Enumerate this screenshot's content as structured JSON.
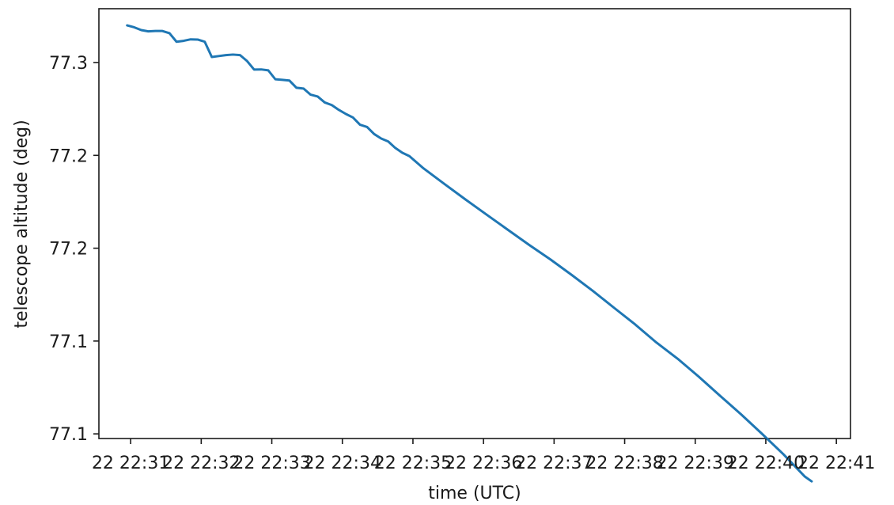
{
  "chart_data": {
    "type": "line",
    "title": "",
    "xlabel": "time (UTC)",
    "ylabel": "telescope altitude (deg)",
    "x_tick_labels": [
      "22 22:31",
      "22 22:32",
      "22 22:33",
      "22 22:34",
      "22 22:35",
      "22 22:36",
      "22 22:37",
      "22 22:38",
      "22 22:39",
      "22 22:40",
      "22 22:41"
    ],
    "y_tick_labels": [
      "77.1",
      "77.1",
      "77.2",
      "77.2",
      "77.3"
    ],
    "y_tick_values": [
      77.1,
      77.15,
      77.2,
      77.25,
      77.3
    ],
    "xlim": [
      "22:30:33",
      "22:41:12"
    ],
    "ylim": [
      77.0975,
      77.329
    ],
    "grid": false,
    "series": [
      {
        "color": "#1f77b4",
        "points": [
          [
            "22:30:57",
            77.32
          ],
          [
            "22:31:03",
            77.319
          ],
          [
            "22:31:09",
            77.3175
          ],
          [
            "22:31:15",
            77.3168
          ],
          [
            "22:31:21",
            77.317
          ],
          [
            "22:31:27",
            77.317
          ],
          [
            "22:31:33",
            77.3158
          ],
          [
            "22:31:39",
            77.3112
          ],
          [
            "22:31:45",
            77.3117
          ],
          [
            "22:31:51",
            77.3125
          ],
          [
            "22:31:57",
            77.3124
          ],
          [
            "22:32:03",
            77.3112
          ],
          [
            "22:32:09",
            77.303
          ],
          [
            "22:32:15",
            77.3035
          ],
          [
            "22:32:21",
            77.304
          ],
          [
            "22:32:27",
            77.3043
          ],
          [
            "22:32:33",
            77.304
          ],
          [
            "22:32:39",
            77.3008
          ],
          [
            "22:32:45",
            77.2962
          ],
          [
            "22:32:51",
            77.2963
          ],
          [
            "22:32:57",
            77.2958
          ],
          [
            "22:33:03",
            77.291
          ],
          [
            "22:33:09",
            77.2907
          ],
          [
            "22:33:15",
            77.2903
          ],
          [
            "22:33:21",
            77.2864
          ],
          [
            "22:33:27",
            77.286
          ],
          [
            "22:33:33",
            77.2827
          ],
          [
            "22:33:39",
            77.2817
          ],
          [
            "22:33:45",
            77.2785
          ],
          [
            "22:33:51",
            77.2771
          ],
          [
            "22:33:57",
            77.2745
          ],
          [
            "22:34:03",
            77.2723
          ],
          [
            "22:34:09",
            77.2704
          ],
          [
            "22:34:15",
            77.2665
          ],
          [
            "22:34:21",
            77.2653
          ],
          [
            "22:34:27",
            77.2615
          ],
          [
            "22:34:33",
            77.2591
          ],
          [
            "22:34:39",
            77.2575
          ],
          [
            "22:34:45",
            77.254
          ],
          [
            "22:34:51",
            77.2514
          ],
          [
            "22:34:57",
            77.2496
          ],
          [
            "22:35:09",
            77.243
          ],
          [
            "22:35:27",
            77.2345
          ],
          [
            "22:35:45",
            77.2261
          ],
          [
            "22:36:03",
            77.2179
          ],
          [
            "22:36:21",
            77.2098
          ],
          [
            "22:36:39",
            77.2017
          ],
          [
            "22:36:57",
            77.1939
          ],
          [
            "22:37:15",
            77.1856
          ],
          [
            "22:37:33",
            77.177
          ],
          [
            "22:37:51",
            77.1679
          ],
          [
            "22:38:09",
            77.1589
          ],
          [
            "22:38:27",
            77.1492
          ],
          [
            "22:38:45",
            77.1405
          ],
          [
            "22:39:03",
            77.1308
          ],
          [
            "22:39:21",
            77.1206
          ],
          [
            "22:39:39",
            77.1105
          ],
          [
            "22:39:57",
            77.0999
          ],
          [
            "22:40:15",
            77.089
          ],
          [
            "22:40:33",
            77.0771
          ],
          [
            "22:40:39",
            77.0744
          ]
        ]
      }
    ]
  }
}
